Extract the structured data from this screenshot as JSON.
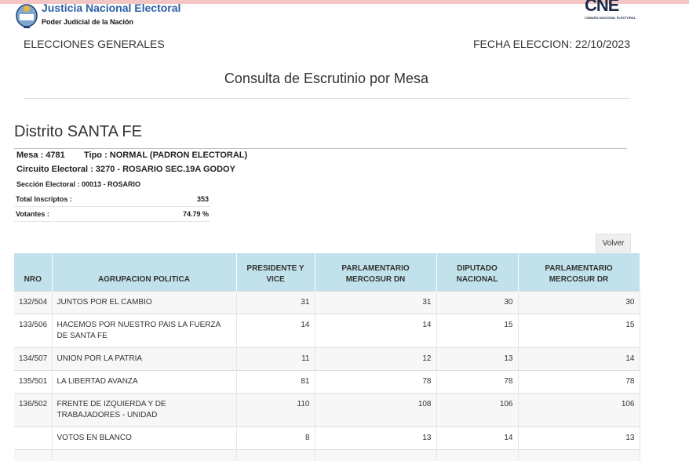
{
  "header": {
    "org_title": "Justicia Nacional Electoral",
    "org_subtitle": "Poder Judicial de la Nación",
    "logo_text": "CNE",
    "logo_subtitle": "CÁMARA NACIONAL ELECTORAL",
    "election": "ELECCIONES GENERALES",
    "date": "FECHA ELECCION: 22/10/2023"
  },
  "title": "Consulta de Escrutinio por Mesa",
  "district": "Distrito SANTA FE",
  "mesa": {
    "mesa": "Mesa : 4781",
    "tipo": "Tipo : NORMAL (PADRON ELECTORAL)",
    "circuito": "Circuito Electoral : 3270 - ROSARIO SEC.19A GODOY",
    "seccion": "Sección Electoral : 00013 - ROSARIO"
  },
  "summary": [
    {
      "label": "Total Inscriptos :",
      "value": "353"
    },
    {
      "label": "Votantes :",
      "value": "74.79 %"
    }
  ],
  "button": "Volver",
  "table": {
    "headers": [
      "NRO",
      "AGRUPACION POLITICA",
      "PRESIDENTE Y VICE",
      "PARLAMENTARIO MERCOSUR DN",
      "DIPUTADO NACIONAL",
      "PARLAMENTARIO MERCOSUR DR"
    ],
    "rows": [
      {
        "nro": "132/504",
        "agrupacion": "JUNTOS POR EL CAMBIO",
        "values": [
          "31",
          "31",
          "30",
          "30"
        ]
      },
      {
        "nro": "133/506",
        "agrupacion": "HACEMOS POR NUESTRO PAIS LA FUERZA DE SANTA FE",
        "values": [
          "14",
          "14",
          "15",
          "15"
        ]
      },
      {
        "nro": "134/507",
        "agrupacion": "UNION POR LA PATRIA",
        "values": [
          "11",
          "12",
          "13",
          "14"
        ]
      },
      {
        "nro": "135/501",
        "agrupacion": "LA LIBERTAD AVANZA",
        "values": [
          "81",
          "78",
          "78",
          "78"
        ]
      },
      {
        "nro": "136/502",
        "agrupacion": "FRENTE DE IZQUIERDA Y DE TRABAJADORES - UNIDAD",
        "values": [
          "110",
          "108",
          "106",
          "106"
        ]
      },
      {
        "nro": null,
        "agrupacion": "VOTOS EN BLANCO",
        "values": [
          "8",
          "13",
          "14",
          "13"
        ]
      }
    ]
  }
}
